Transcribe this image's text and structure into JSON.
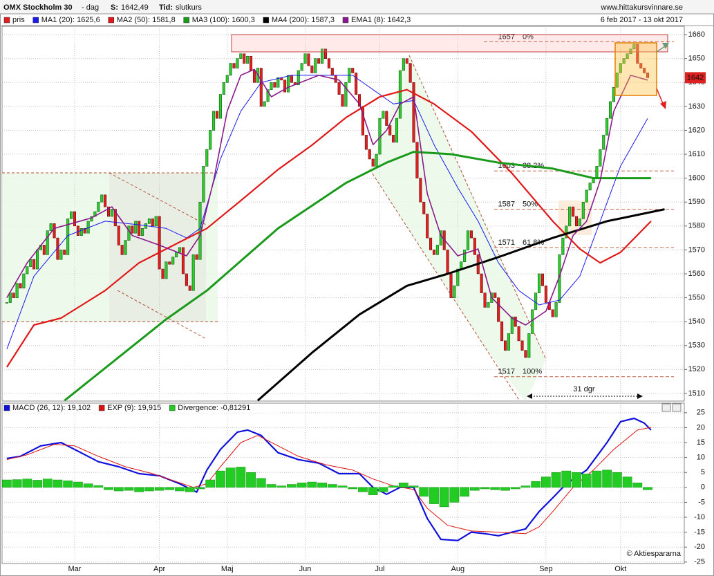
{
  "header": {
    "instrument": "OMX Stockholm 30",
    "period": "- dag",
    "s_label": "S:",
    "s_value": "1642,49",
    "tid_label": "Tid:",
    "tid_value": "slutkurs",
    "site": "www.hittakursvinnare.se",
    "date_range": "6 feb 2017 - 13 okt 2017",
    "credit": "© Aktiespararna"
  },
  "chart_data": [
    {
      "type": "candlestick",
      "name": "pris",
      "up_color": "#2ecc2e",
      "down_color": "#e02020",
      "legend_color": "#e02020",
      "xlim": [
        -1.4,
        199.8
      ],
      "ylim": [
        1506.8,
        1663.5
      ],
      "yticks": [
        1510,
        1520,
        1530,
        1540,
        1550,
        1560,
        1570,
        1580,
        1590,
        1600,
        1610,
        1620,
        1630,
        1640,
        1650,
        1660
      ],
      "grid": true,
      "close": [
        1548,
        1552,
        1550,
        1556,
        1554,
        1560,
        1563,
        1566,
        1562,
        1570,
        1572,
        1568,
        1578,
        1581,
        1575,
        1566,
        1570,
        1568,
        1583,
        1586,
        1580,
        1576,
        1579,
        1577,
        1582,
        1584,
        1586,
        1590,
        1593,
        1588,
        1584,
        1587,
        1580,
        1572,
        1568,
        1574,
        1580,
        1577,
        1582,
        1576,
        1579,
        1581,
        1583,
        1580,
        1584,
        1562,
        1558,
        1565,
        1564,
        1567,
        1569,
        1571,
        1560,
        1555,
        1553,
        1568,
        1566,
        1590,
        1605,
        1612,
        1620,
        1628,
        1625,
        1635,
        1640,
        1643,
        1648,
        1646,
        1650,
        1652,
        1648,
        1651,
        1645,
        1640,
        1646,
        1630,
        1632,
        1637,
        1640,
        1638,
        1642,
        1641,
        1636,
        1643,
        1640,
        1639,
        1645,
        1648,
        1652,
        1647,
        1644,
        1650,
        1648,
        1654,
        1650,
        1646,
        1643,
        1640,
        1635,
        1630,
        1640,
        1646,
        1644,
        1635,
        1630,
        1618,
        1612,
        1608,
        1605,
        1610,
        1625,
        1628,
        1622,
        1618,
        1615,
        1625,
        1645,
        1650,
        1648,
        1640,
        1615,
        1600,
        1590,
        1585,
        1575,
        1570,
        1568,
        1572,
        1578,
        1570,
        1560,
        1550,
        1555,
        1562,
        1565,
        1570,
        1578,
        1575,
        1568,
        1560,
        1552,
        1546,
        1548,
        1552,
        1550,
        1540,
        1532,
        1528,
        1535,
        1542,
        1538,
        1532,
        1528,
        1525,
        1535,
        1545,
        1552,
        1560,
        1555,
        1548,
        1545,
        1542,
        1548,
        1568,
        1575,
        1580,
        1588,
        1584,
        1580,
        1583,
        1590,
        1595,
        1598,
        1600,
        1605,
        1612,
        1618,
        1625,
        1632,
        1638,
        1644,
        1648,
        1650,
        1652,
        1654,
        1656,
        1648,
        1646,
        1644,
        1642
      ],
      "series": [
        {
          "name": "MA1 (20): 1625,6",
          "color": "#1a1aee",
          "width": 1,
          "x": [
            0,
            8,
            18,
            29,
            39,
            47,
            53,
            57,
            63,
            69,
            75,
            84,
            94,
            102,
            108,
            114,
            120,
            126,
            133,
            139,
            145,
            151,
            157,
            163,
            169,
            175,
            181,
            189
          ],
          "values": [
            1528.5,
            1559,
            1576,
            1582,
            1580.5,
            1579,
            1575,
            1579,
            1608,
            1628,
            1640,
            1643,
            1643,
            1643,
            1637,
            1631,
            1632.5,
            1614,
            1596,
            1582,
            1564.6,
            1553,
            1547,
            1549,
            1559,
            1582,
            1605,
            1625
          ]
        },
        {
          "name": "MA2 (50): 1581,8",
          "color": "#e01818",
          "width": 2.2,
          "x": [
            0,
            8,
            16,
            29,
            39,
            51,
            59,
            69,
            80,
            90,
            100,
            110,
            118,
            126,
            137,
            149,
            161,
            169,
            175,
            181,
            190
          ],
          "values": [
            1521,
            1538.6,
            1541.5,
            1553,
            1564.6,
            1573.3,
            1579,
            1590.6,
            1603.6,
            1613.8,
            1625.3,
            1634,
            1637,
            1631,
            1619.5,
            1602,
            1582,
            1570.4,
            1564.6,
            1569,
            1582
          ]
        },
        {
          "name": "MA3 (100): 1600,3",
          "color": "#1a9a1a",
          "width": 3,
          "x": [
            17,
            47,
            59,
            80,
            100,
            112,
            120,
            131,
            145,
            161,
            173,
            190
          ],
          "values": [
            1507,
            1541,
            1553,
            1579,
            1598,
            1606.5,
            1611,
            1610,
            1606.5,
            1604,
            1600,
            1600
          ]
        },
        {
          "name": "MA4 (200): 1587,3",
          "color": "#000000",
          "width": 3,
          "x": [
            74,
            90,
            104,
            118,
            130,
            145,
            161,
            177,
            194
          ],
          "values": [
            1507,
            1527,
            1543,
            1555,
            1560,
            1567,
            1575,
            1582,
            1587
          ]
        },
        {
          "name": "EMA1 (8): 1642,3",
          "color": "#8a1a8a",
          "width": 1.6,
          "x": [
            0,
            6,
            14,
            25,
            31,
            37,
            45,
            53,
            57,
            61,
            65,
            69,
            73,
            78,
            83,
            92,
            98,
            104,
            108,
            112,
            116,
            120,
            124,
            128,
            133,
            139,
            143,
            149,
            153,
            159,
            163,
            167,
            171,
            175,
            179,
            184,
            189
          ],
          "values": [
            1550,
            1564.6,
            1579,
            1583.4,
            1588,
            1576,
            1572,
            1567.5,
            1576,
            1599,
            1628,
            1643,
            1645.5,
            1634,
            1638,
            1643,
            1641,
            1631,
            1614,
            1620,
            1631,
            1634,
            1593.5,
            1576,
            1567.5,
            1570.4,
            1550,
            1541.5,
            1538.6,
            1544.4,
            1559,
            1576,
            1582,
            1599,
            1628,
            1643,
            1641
          ]
        }
      ],
      "fibonacci": [
        {
          "value": 1657,
          "label": "0%"
        },
        {
          "value": 1603,
          "label": "38.2%"
        },
        {
          "value": 1587,
          "label": "50%"
        },
        {
          "value": 1571,
          "label": "61.8%"
        },
        {
          "value": 1517,
          "label": "100%"
        }
      ],
      "price_tag": 1642,
      "annotation": "31 dgr"
    },
    {
      "type": "line",
      "xlim": [
        -1.4,
        199.8
      ],
      "ylim": [
        -25.5,
        28.2
      ],
      "yticks": [
        -25,
        -20,
        -15,
        -10,
        -5,
        0,
        5,
        10,
        15,
        20,
        25
      ],
      "grid": true,
      "xticks": [
        {
          "value": 20,
          "label": "Mar"
        },
        {
          "value": 45,
          "label": "Apr"
        },
        {
          "value": 65,
          "label": "Maj"
        },
        {
          "value": 88,
          "label": "Jun"
        },
        {
          "value": 110,
          "label": "Jul"
        },
        {
          "value": 133,
          "label": "Aug"
        },
        {
          "value": 159,
          "label": "Sep"
        },
        {
          "value": 181,
          "label": "Okt"
        }
      ],
      "series": [
        {
          "name": "MACD (26, 12): 19,102",
          "color": "#1010dd",
          "kind": "line",
          "width": 2.2,
          "x": [
            0,
            4,
            10,
            16,
            20,
            27,
            33,
            39,
            45,
            51,
            56,
            59,
            63,
            68,
            71,
            75,
            80,
            86,
            92,
            98,
            104,
            108,
            112,
            116,
            120,
            124,
            128,
            133,
            137,
            141,
            145,
            149,
            153,
            157,
            161,
            165,
            171,
            177,
            181,
            185,
            188,
            190
          ],
          "values": [
            9.7,
            10.4,
            13.9,
            15,
            12.7,
            8.6,
            6.9,
            4.6,
            3.9,
            1.2,
            -1.6,
            5.8,
            12.7,
            18.5,
            19.2,
            17.4,
            11.6,
            9.3,
            8.1,
            4.6,
            4.6,
            0,
            -2.3,
            0,
            0,
            -10.4,
            -17.4,
            -17.8,
            -15,
            -15.5,
            -16.2,
            -15,
            -13.9,
            -8.1,
            -3.5,
            1.2,
            5.8,
            15,
            22,
            23.1,
            21.5,
            19.2
          ]
        },
        {
          "name": "EXP (9): 19,915",
          "color": "#dd1010",
          "kind": "line",
          "width": 1,
          "x": [
            0,
            6,
            14,
            20,
            27,
            35,
            43,
            49,
            55,
            59,
            63,
            69,
            74,
            80,
            86,
            94,
            102,
            108,
            114,
            120,
            124,
            130,
            137,
            145,
            153,
            157,
            161,
            167,
            173,
            179,
            186,
            190
          ],
          "values": [
            9.3,
            10.9,
            14.4,
            13.9,
            10.4,
            6.9,
            4.6,
            2.3,
            0,
            1.2,
            6.9,
            15,
            17.4,
            13.9,
            10.4,
            7.6,
            5.8,
            2.8,
            0.5,
            -0.7,
            -7,
            -12.7,
            -14.6,
            -15,
            -15.5,
            -13.2,
            -8.1,
            0,
            5.8,
            12.7,
            19.2,
            20.1
          ]
        },
        {
          "name": "Divergence: -0,81291",
          "color": "#22cc22",
          "kind": "bar",
          "x": [
            0,
            3,
            6,
            9,
            12,
            15,
            18,
            21,
            24,
            27,
            30,
            33,
            36,
            39,
            42,
            45,
            48,
            51,
            54,
            57,
            60,
            63,
            66,
            69,
            72,
            75,
            78,
            81,
            84,
            87,
            90,
            93,
            96,
            99,
            102,
            105,
            108,
            111,
            114,
            117,
            120,
            123,
            126,
            129,
            132,
            135,
            138,
            141,
            144,
            147,
            150,
            153,
            156,
            159,
            162,
            165,
            168,
            171,
            174,
            177,
            180,
            183,
            186,
            189
          ],
          "values": [
            2.5,
            2.6,
            2.8,
            2.4,
            2.8,
            2.5,
            2.2,
            1.8,
            1.2,
            0.6,
            -0.8,
            -1.2,
            -1,
            -1.5,
            -1.2,
            -1,
            -0.8,
            -1.2,
            -1.5,
            -0.5,
            2.5,
            5.5,
            6.5,
            6.8,
            5,
            3,
            1,
            0.5,
            1,
            1.5,
            1.8,
            1.5,
            1,
            0.5,
            -0.5,
            -1.5,
            -2.5,
            -1.5,
            0.5,
            1.5,
            0.5,
            -3,
            -5.5,
            -6.5,
            -5,
            -3,
            -1,
            -0.5,
            -0.8,
            -1,
            -0.5,
            0.5,
            2,
            3.5,
            5,
            5.5,
            5,
            4.5,
            5.5,
            5.8,
            5,
            3.5,
            1.5,
            -0.8
          ]
        }
      ]
    }
  ]
}
